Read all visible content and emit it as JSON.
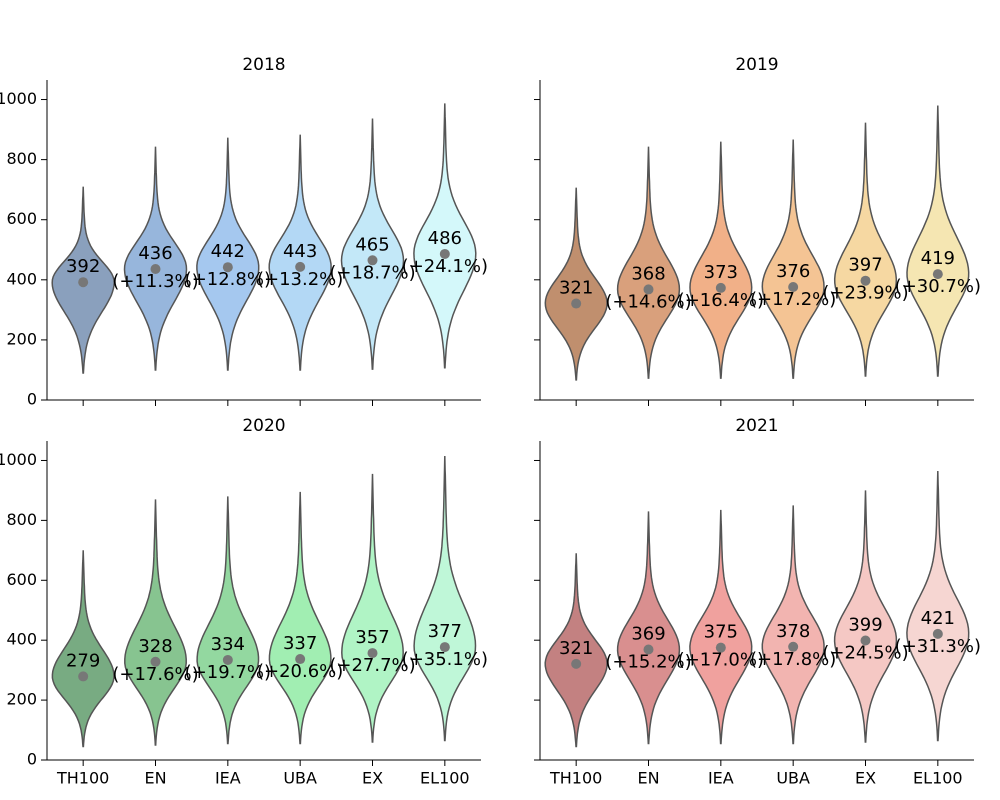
{
  "chart_data": [
    {
      "type": "violin",
      "title": "2018",
      "categories": [
        "TH100",
        "EN",
        "IEA",
        "UBA",
        "EX",
        "EL100"
      ],
      "values": [
        392,
        436,
        442,
        443,
        465,
        486
      ],
      "change_labels": [
        null,
        "(+11.3%)",
        "(+12.8%)",
        "(+13.2%)",
        "(+18.7%)",
        "(+24.1%)"
      ],
      "mins": [
        90,
        100,
        100,
        100,
        103,
        107
      ],
      "maxs": [
        710,
        843,
        873,
        883,
        937,
        987
      ],
      "colors": [
        "#8aa0bd",
        "#97b6dc",
        "#a5c8ef",
        "#b3d8f5",
        "#c3e8f8",
        "#d4f8fa"
      ],
      "ylim": [
        0,
        1065
      ],
      "yticks": [
        0,
        200,
        400,
        600,
        800,
        1000
      ],
      "show_yticklabels": true,
      "show_xticklabels": false
    },
    {
      "type": "violin",
      "title": "2019",
      "categories": [
        "TH100",
        "EN",
        "IEA",
        "UBA",
        "EX",
        "EL100"
      ],
      "values": [
        321,
        368,
        373,
        376,
        397,
        419
      ],
      "change_labels": [
        null,
        "(+14.6%)",
        "(+16.4%)",
        "(+17.2%)",
        "(+23.9%)",
        "(+30.7%)"
      ],
      "mins": [
        67,
        73,
        73,
        73,
        80,
        80
      ],
      "maxs": [
        707,
        843,
        860,
        867,
        923,
        980
      ],
      "colors": [
        "#c08f6e",
        "#d9a07c",
        "#f1b088",
        "#f4c494",
        "#f6d8a2",
        "#f5e6b2"
      ],
      "ylim": [
        0,
        1065
      ],
      "yticks": [
        0,
        200,
        400,
        600,
        800,
        1000
      ],
      "show_yticklabels": false,
      "show_xticklabels": false
    },
    {
      "type": "violin",
      "title": "2020",
      "categories": [
        "TH100",
        "EN",
        "IEA",
        "UBA",
        "EX",
        "EL100"
      ],
      "values": [
        279,
        328,
        334,
        337,
        357,
        377
      ],
      "change_labels": [
        null,
        "(+17.6%)",
        "(+19.7%)",
        "(+20.6%)",
        "(+27.7%)",
        "(+35.1%)"
      ],
      "mins": [
        45,
        50,
        55,
        55,
        60,
        65
      ],
      "maxs": [
        700,
        870,
        880,
        895,
        955,
        1015
      ],
      "colors": [
        "#78ab82",
        "#87c490",
        "#93d8a0",
        "#a1eeb2",
        "#b0f4c5",
        "#bff7d8"
      ],
      "ylim": [
        0,
        1065
      ],
      "yticks": [
        0,
        200,
        400,
        600,
        800,
        1000
      ],
      "show_yticklabels": true,
      "show_xticklabels": true
    },
    {
      "type": "violin",
      "title": "2021",
      "categories": [
        "TH100",
        "EN",
        "IEA",
        "UBA",
        "EX",
        "EL100"
      ],
      "values": [
        321,
        369,
        375,
        378,
        399,
        421
      ],
      "change_labels": [
        null,
        "(+15.2%)",
        "(+17.0%)",
        "(+17.8%)",
        "(+24.5%)",
        "(+31.3%)"
      ],
      "mins": [
        45,
        55,
        55,
        55,
        60,
        65
      ],
      "maxs": [
        690,
        830,
        835,
        850,
        900,
        965
      ],
      "colors": [
        "#c38181",
        "#d98f8f",
        "#f0a19e",
        "#f2b4b0",
        "#f5c8c4",
        "#f6d6d2"
      ],
      "ylim": [
        0,
        1065
      ],
      "yticks": [
        0,
        200,
        400,
        600,
        800,
        1000
      ],
      "show_yticklabels": false,
      "show_xticklabels": true
    }
  ]
}
